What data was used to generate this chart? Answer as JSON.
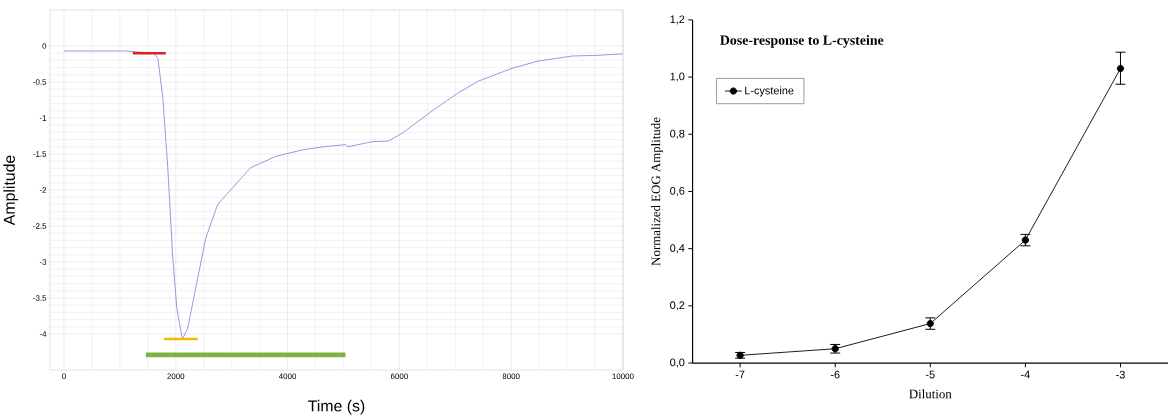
{
  "chart_data": [
    {
      "type": "line",
      "xlabel": "Time (s)",
      "ylabel": "Amplitude",
      "xlim": [
        -250,
        10000
      ],
      "ylim": [
        -4.5,
        0.5
      ],
      "xticks": [
        0,
        2000,
        4000,
        6000,
        8000,
        10000
      ],
      "yticks": [
        0,
        -0.5,
        -1,
        -1.5,
        -2,
        -2.5,
        -3,
        -3.5,
        -4
      ],
      "grid": true,
      "series": [
        {
          "color": "#8c8ce0",
          "x": [
            0,
            1107,
            1607,
            1679,
            1768,
            1857,
            1946,
            2018,
            2107,
            2125,
            2214,
            2357,
            2536,
            2750,
            2982,
            3339,
            3804,
            4286,
            4643,
            5036,
            5071,
            5518,
            5804,
            6054,
            6589,
            7054,
            7411,
            8018,
            8482,
            9089,
            9554,
            10000
          ],
          "values": [
            -0.07,
            -0.07,
            -0.1,
            -0.17,
            -0.72,
            -1.69,
            -2.94,
            -3.64,
            -4.03,
            -4.06,
            -3.92,
            -3.36,
            -2.67,
            -2.2,
            -2.0,
            -1.69,
            -1.53,
            -1.44,
            -1.4,
            -1.37,
            -1.4,
            -1.33,
            -1.32,
            -1.21,
            -0.9,
            -0.65,
            -0.49,
            -0.31,
            -0.21,
            -0.14,
            -0.13,
            -0.11
          ]
        },
        {
          "color": "#e02020",
          "x": [
            1232,
            1821
          ],
          "values": [
            -0.1,
            -0.1
          ]
        },
        {
          "color": "#f5b800",
          "x": [
            1786,
            2393
          ],
          "values": [
            -4.07,
            -4.07
          ]
        },
        {
          "color": "#7cb342",
          "x": [
            1464,
            5036
          ],
          "values": [
            -4.29,
            -4.29
          ]
        }
      ]
    },
    {
      "type": "line",
      "title": "Dose-response to L-cysteine",
      "xlabel": "Dilution",
      "ylabel": "Normalized EOG Amplitude",
      "xlim": [
        -7.5,
        -2.5
      ],
      "ylim": [
        0,
        1.2
      ],
      "xticks": [
        -7,
        -6,
        -5,
        -4,
        -3
      ],
      "yticks": [
        {
          "value": 0,
          "label": "0,0"
        },
        {
          "value": 0.2,
          "label": "0,2"
        },
        {
          "value": 0.4,
          "label": "0,4"
        },
        {
          "value": 0.6,
          "label": "0,6"
        },
        {
          "value": 0.8,
          "label": "0,8"
        },
        {
          "value": 1.0,
          "label": "1,0"
        },
        {
          "value": 1.2,
          "label": "1,2"
        }
      ],
      "legend": "top left",
      "marker": "circle",
      "series": [
        {
          "name": "L-cysteine",
          "color": "#000000",
          "x": [
            -7,
            -6,
            -5,
            -4,
            -3
          ],
          "values": [
            0.027,
            0.05,
            0.138,
            0.43,
            1.03
          ],
          "errors": [
            0.01,
            0.015,
            0.02,
            0.02,
            [
              0.975,
              1.087
            ]
          ]
        }
      ]
    }
  ]
}
